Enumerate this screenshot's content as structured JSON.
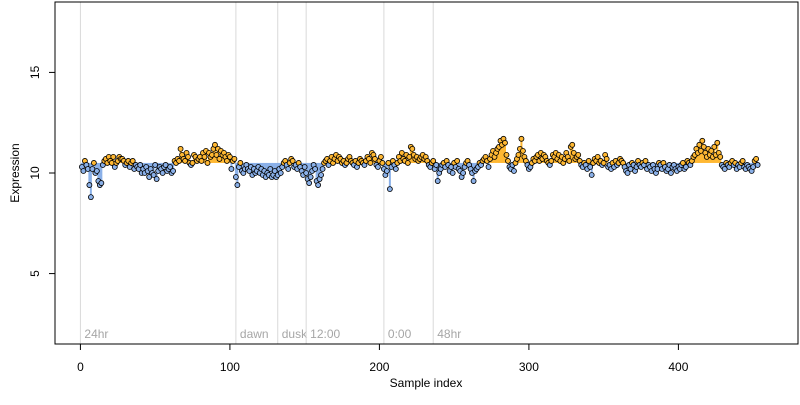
{
  "chart_data": {
    "type": "scatter",
    "xlabel": "Sample index",
    "ylabel": "Expression",
    "xlim": [
      -17,
      480
    ],
    "ylim": [
      1.5,
      18.5
    ],
    "baseline": 10.5,
    "x_ticks": [
      0,
      100,
      200,
      300,
      400
    ],
    "y_ticks": [
      5,
      10,
      15
    ],
    "markers": [
      {
        "x": 0,
        "label": "24hr"
      },
      {
        "x": 104,
        "label": "dawn"
      },
      {
        "x": 132,
        "label": "dusk"
      },
      {
        "x": 151,
        "label": "12:00"
      },
      {
        "x": 203,
        "label": "0:00"
      },
      {
        "x": 236,
        "label": "48hr"
      }
    ],
    "grid": false,
    "legend": "none",
    "colors": {
      "above": "#ffb833",
      "below": "#8ab0e8",
      "marker_line": "#d9d9d9",
      "marker_text": "#a6a6a6"
    },
    "series": [
      {
        "x0": 1,
        "values": [
          10.3,
          10.1,
          10.6,
          10.4,
          10.2,
          9.4,
          8.8,
          10.2,
          10.5,
          10.0,
          10.1,
          9.6,
          9.4,
          9.5,
          10.4,
          10.6,
          10.7,
          10.5,
          10.8,
          10.6,
          10.5,
          10.8,
          10.3,
          10.5,
          10.6,
          10.8,
          10.7,
          10.7,
          10.6,
          10.4,
          10.5,
          10.6,
          10.3,
          10.5,
          10.6,
          10.2,
          10.4,
          10.3,
          10.2,
          10.4,
          10.0,
          10.2,
          10.0,
          10.3,
          10.1,
          9.8,
          10.2,
          10.0,
          9.9,
          10.4,
          9.7,
          10.1,
          10.3,
          10.2,
          10.0,
          10.3,
          10.4,
          10.1,
          10.2,
          10.3,
          10.0,
          10.1,
          10.6,
          10.5,
          10.7,
          10.6,
          11.2,
          10.9,
          10.7,
          10.6,
          11.0,
          10.8,
          10.5,
          10.4,
          10.5,
          10.9,
          10.8,
          10.6,
          10.7,
          10.8,
          10.6,
          11.0,
          10.8,
          11.1,
          10.5,
          11.0,
          10.8,
          10.9,
          11.2,
          11.4,
          10.9,
          11.2,
          10.7,
          11.1,
          10.9,
          11.0,
          10.8,
          10.6,
          10.9,
          10.8,
          10.2,
          10.6,
          10.7,
          9.8,
          9.4,
          10.3,
          10.5,
          10.1,
          10.0,
          10.2,
          10.4,
          10.2,
          10.1,
          10.3,
          9.9,
          10.2,
          10.0,
          10.1,
          10.3,
          10.0,
          10.2,
          9.9,
          10.1,
          9.8,
          10.0,
          9.9,
          10.2,
          9.8,
          9.9,
          10.1,
          9.8,
          9.9,
          10.2,
          10.0,
          10.3,
          10.5,
          10.6,
          10.4,
          10.2,
          10.5,
          10.7,
          10.6,
          10.3,
          10.4,
          10.2,
          10.5,
          10.3,
          10.1,
          9.9,
          10.3,
          10.0,
          9.7,
          9.5,
          9.8,
          10.1,
          10.4,
          10.2,
          9.6,
          9.4,
          9.7,
          9.9,
          10.2,
          10.5,
          10.6,
          10.7,
          10.4,
          10.6,
          10.8,
          10.5,
          10.7,
          10.9,
          10.6,
          10.8,
          10.7,
          10.5,
          10.6,
          10.4,
          10.5,
          10.7,
          10.8,
          10.6,
          10.5,
          10.4,
          10.6,
          10.3,
          10.5,
          10.7,
          10.6,
          10.5,
          10.4,
          10.6,
          10.8,
          10.7,
          10.5,
          11.0,
          10.9,
          10.7,
          10.4,
          10.3,
          10.6,
          10.8,
          10.5,
          10.2,
          9.9,
          10.1,
          10.5,
          9.2,
          10.3,
          10.6,
          10.4,
          10.2,
          10.5,
          10.8,
          10.6,
          11.0,
          10.7,
          10.6,
          10.9,
          10.5,
          10.8,
          11.3,
          11.2,
          10.9,
          10.7,
          10.8,
          10.6,
          10.7,
          10.8,
          10.9,
          10.7,
          10.8,
          10.6,
          10.4,
          10.3,
          10.5,
          10.6,
          10.2,
          10.4,
          9.6,
          10.0,
          10.2,
          10.4,
          10.5,
          10.3,
          10.6,
          10.4,
          10.1,
          10.3,
          10.0,
          10.5,
          10.3,
          10.6,
          10.2,
          10.1,
          9.8,
          10.0,
          10.3,
          10.5,
          10.6,
          10.4,
          10.2,
          10.0,
          9.6,
          10.1,
          10.2,
          10.3,
          10.5,
          10.4,
          10.6,
          10.7,
          10.8,
          10.6,
          10.3,
          10.7,
          10.9,
          11.1,
          10.8,
          11.0,
          11.2,
          11.3,
          11.6,
          11.4,
          11.7,
          11.5,
          10.9,
          10.6,
          10.3,
          10.2,
          10.4,
          10.1,
          10.5,
          10.7,
          10.9,
          11.2,
          11.7,
          11.1,
          10.8,
          10.6,
          10.4,
          10.2,
          10.3,
          10.5,
          10.7,
          10.6,
          10.8,
          10.9,
          10.6,
          11.0,
          10.7,
          10.9,
          10.8,
          10.6,
          10.5,
          10.4,
          10.6,
          10.9,
          10.8,
          11.0,
          10.7,
          10.9,
          10.6,
          10.8,
          10.5,
          10.7,
          11.0,
          10.8,
          10.6,
          11.3,
          11.4,
          11.0,
          10.7,
          10.8,
          10.9,
          10.6,
          10.4,
          10.3,
          10.5,
          10.4,
          10.2,
          10.6,
          10.3,
          9.9,
          10.5,
          10.7,
          10.6,
          10.8,
          10.5,
          10.6,
          10.4,
          10.5,
          10.9,
          10.7,
          10.3,
          10.4,
          10.2,
          10.5,
          10.3,
          10.6,
          10.4,
          10.5,
          10.7,
          10.6,
          10.5,
          10.3,
          10.1,
          10.0,
          10.4,
          10.2,
          10.5,
          10.4,
          10.1,
          10.3,
          10.6,
          10.4,
          10.3,
          10.5,
          10.4,
          10.6,
          10.2,
          10.4,
          10.3,
          10.1,
          10.4,
          10.2,
          10.0,
          10.2,
          10.5,
          10.4,
          10.2,
          10.5,
          10.3,
          10.1,
          10.2,
          10.4,
          10.0,
          10.3,
          10.4,
          10.2,
          10.1,
          10.3,
          10.2,
          10.4,
          10.5,
          10.2,
          10.3,
          10.6,
          10.5,
          10.4,
          10.6,
          10.8,
          10.9,
          11.2,
          11.0,
          11.4,
          11.1,
          11.6,
          11.3,
          11.0,
          10.8,
          11.2,
          10.9,
          11.1,
          10.8,
          11.3,
          10.9,
          11.5,
          11.0,
          10.8,
          10.4,
          10.3,
          10.2,
          10.5,
          10.4,
          10.3,
          10.5,
          10.6,
          10.4,
          10.5,
          10.2,
          10.4,
          10.3,
          10.5,
          10.6,
          10.3,
          10.2,
          10.4,
          10.3,
          10.2,
          10.1,
          10.3,
          10.6,
          10.7,
          10.4
        ]
      }
    ]
  }
}
